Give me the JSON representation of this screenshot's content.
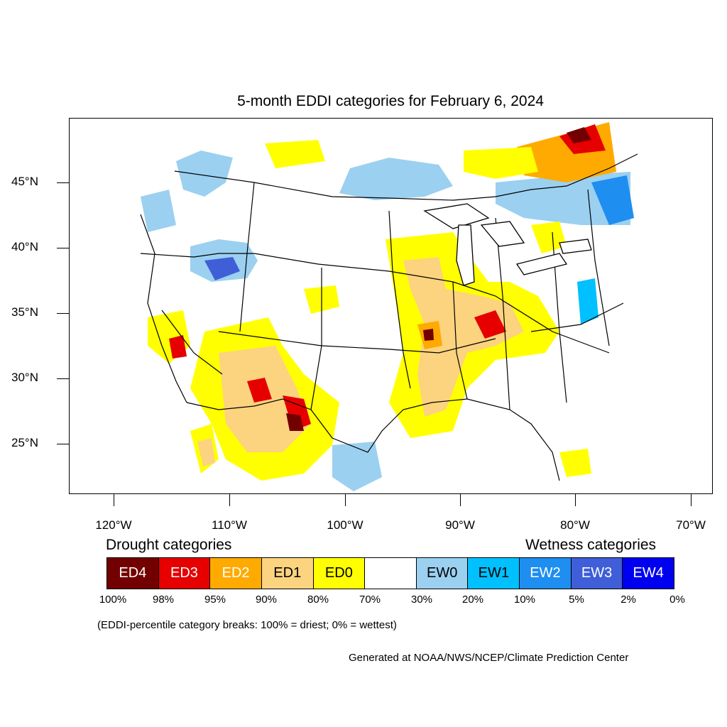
{
  "title": "5-month EDDI categories for February 6, 2024",
  "lat_axis": [
    "45°N",
    "40°N",
    "35°N",
    "30°N",
    "25°N"
  ],
  "lon_axis": [
    "120°W",
    "110°W",
    "100°W",
    "90°W",
    "80°W",
    "70°W"
  ],
  "legend": {
    "drought_heading": "Drought categories",
    "wetness_heading": "Wetness categories",
    "categories": [
      {
        "label": "ED4",
        "color": "#730000",
        "text_color": "#ffffff"
      },
      {
        "label": "ED3",
        "color": "#e60000",
        "text_color": "#ffffff"
      },
      {
        "label": "ED2",
        "color": "#ffaa00",
        "text_color": "#ffffff"
      },
      {
        "label": "ED1",
        "color": "#fcd37f",
        "text_color": "#000000"
      },
      {
        "label": "ED0",
        "color": "#ffff00",
        "text_color": "#000000"
      },
      {
        "label": "",
        "color": "#ffffff",
        "text_color": "#000000"
      },
      {
        "label": "EW0",
        "color": "#9bd0f0",
        "text_color": "#000000"
      },
      {
        "label": "EW1",
        "color": "#00c0ff",
        "text_color": "#000000"
      },
      {
        "label": "EW2",
        "color": "#1e8ef0",
        "text_color": "#ffffff"
      },
      {
        "label": "EW3",
        "color": "#3f5ed8",
        "text_color": "#ffffff"
      },
      {
        "label": "EW4",
        "color": "#0000f0",
        "text_color": "#ffffff"
      }
    ],
    "breaks": [
      "100%",
      "98%",
      "95%",
      "90%",
      "80%",
      "70%",
      "30%",
      "20%",
      "10%",
      "5%",
      "2%",
      "0%"
    ]
  },
  "note": "(EDDI-percentile category breaks: 100% = driest; 0% = wettest)",
  "credit": "Generated at NOAA/NWS/NCEP/Climate Prediction Center"
}
